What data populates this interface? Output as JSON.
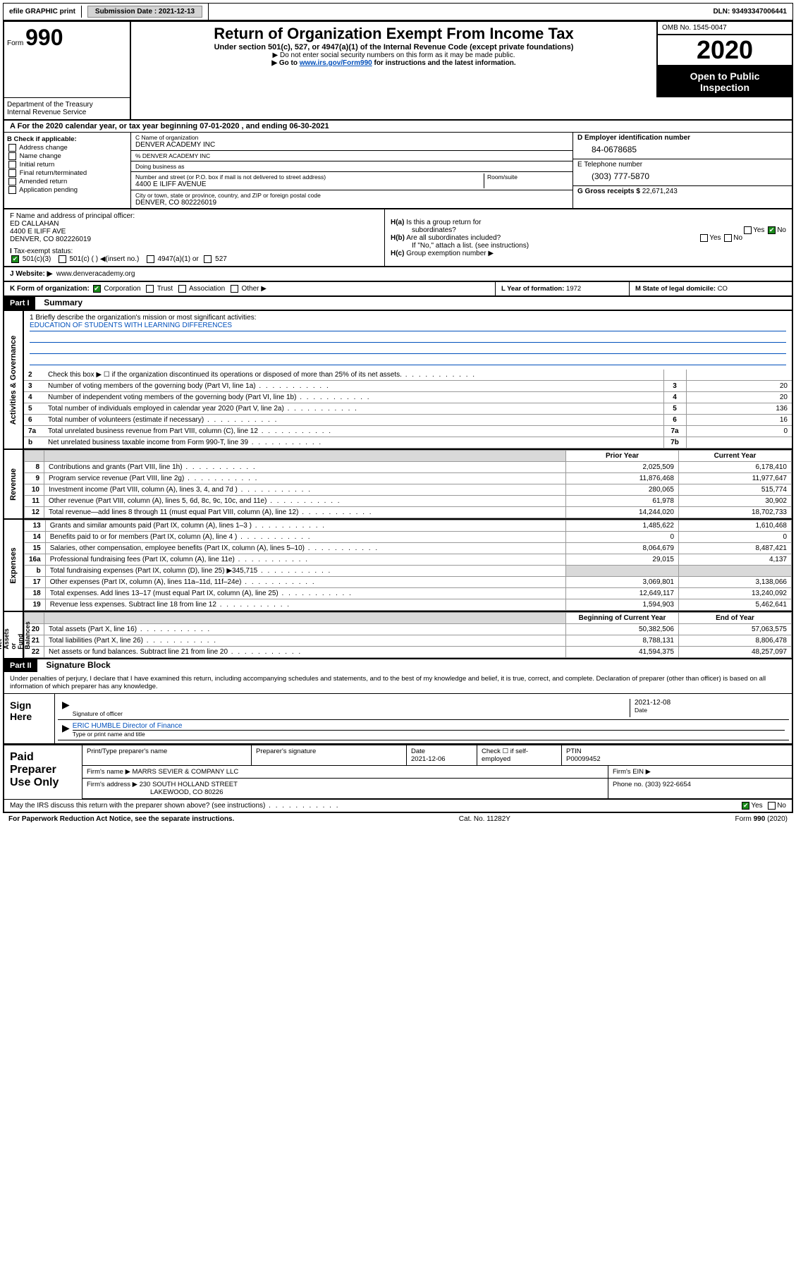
{
  "topbar": {
    "efile": "efile GRAPHIC print",
    "submission_label": "Submission Date : ",
    "submission_date": "2021-12-13",
    "dln_label": "DLN: ",
    "dln": "93493347006441"
  },
  "header": {
    "form_prefix": "Form",
    "form_number": "990",
    "title": "Return of Organization Exempt From Income Tax",
    "subtitle": "Under section 501(c), 527, or 4947(a)(1) of the Internal Revenue Code (except private foundations)",
    "instr1": "Do not enter social security numbers on this form as it may be made public.",
    "instr2_a": "Go to ",
    "instr2_link": "www.irs.gov/Form990",
    "instr2_b": " for instructions and the latest information.",
    "omb": "OMB No. 1545-0047",
    "year": "2020",
    "open_public_a": "Open to Public",
    "open_public_b": "Inspection",
    "dept": "Department of the Treasury\nInternal Revenue Service"
  },
  "line_a": "For the 2020 calendar year, or tax year beginning 07-01-2020   , and ending 06-30-2021",
  "check_b": {
    "label": "B Check if applicable:",
    "opts": [
      "Address change",
      "Name change",
      "Initial return",
      "Final return/terminated",
      "Amended return",
      "Application pending"
    ]
  },
  "org": {
    "c_label": "C Name of organization",
    "name": "DENVER ACADEMY INC",
    "pct": "% DENVER ACADEMY INC",
    "dba_label": "Doing business as",
    "addr_label": "Number and street (or P.O. box if mail is not delivered to street address)",
    "room_label": "Room/suite",
    "addr": "4400 E ILIFF AVENUE",
    "city_label": "City or town, state or province, country, and ZIP or foreign postal code",
    "city": "DENVER, CO  802226019"
  },
  "right_col": {
    "d_label": "D Employer identification number",
    "ein": "84-0678685",
    "e_label": "E Telephone number",
    "phone": "(303) 777-5870",
    "g_label": "G Gross receipts $ ",
    "gross": "22,671,243"
  },
  "officer": {
    "f_label": "F Name and address of principal officer:",
    "name": "ED CALLAHAN",
    "addr1": "4400 E ILIFF AVE",
    "addr2": "DENVER, CO  802226019"
  },
  "h_section": {
    "ha": "Is this a group return for",
    "ha2": "subordinates?",
    "hb": "Are all subordinates included?",
    "hb2": "If \"No,\" attach a list. (see instructions)",
    "hc": "Group exemption number ▶"
  },
  "tax_status": {
    "label": "Tax-exempt status:",
    "opts": [
      "501(c)(3)",
      "501(c) (  ) ◀(insert no.)",
      "4947(a)(1) or",
      "527"
    ]
  },
  "website": {
    "label": "J   Website: ▶",
    "url": "www.denveracademy.org"
  },
  "k_org": {
    "label": "K Form of organization:",
    "opts": [
      "Corporation",
      "Trust",
      "Association",
      "Other ▶"
    ]
  },
  "l": {
    "label": "L Year of formation: ",
    "val": "1972"
  },
  "m": {
    "label": "M State of legal domicile: ",
    "val": "CO"
  },
  "part1": {
    "header": "Part I",
    "title": "Summary"
  },
  "mission": {
    "q": "1  Briefly describe the organization's mission or most significant activities:",
    "text": "EDUCATION OF STUDENTS WITH LEARNING DIFFERENCES"
  },
  "governance_rows": [
    {
      "n": "2",
      "d": "Check this box ▶ ☐  if the organization discontinued its operations or disposed of more than 25% of its net assets.",
      "num": "",
      "v": ""
    },
    {
      "n": "3",
      "d": "Number of voting members of the governing body (Part VI, line 1a)",
      "num": "3",
      "v": "20"
    },
    {
      "n": "4",
      "d": "Number of independent voting members of the governing body (Part VI, line 1b)",
      "num": "4",
      "v": "20"
    },
    {
      "n": "5",
      "d": "Total number of individuals employed in calendar year 2020 (Part V, line 2a)",
      "num": "5",
      "v": "136"
    },
    {
      "n": "6",
      "d": "Total number of volunteers (estimate if necessary)",
      "num": "6",
      "v": "16"
    },
    {
      "n": "7a",
      "d": "Total unrelated business revenue from Part VIII, column (C), line 12",
      "num": "7a",
      "v": "0"
    },
    {
      "n": "b",
      "d": "Net unrelated business taxable income from Form 990-T, line 39",
      "num": "7b",
      "v": ""
    }
  ],
  "rev_header": {
    "c1": "Prior Year",
    "c2": "Current Year"
  },
  "revenue": [
    {
      "n": "8",
      "d": "Contributions and grants (Part VIII, line 1h)",
      "v1": "2,025,509",
      "v2": "6,178,410"
    },
    {
      "n": "9",
      "d": "Program service revenue (Part VIII, line 2g)",
      "v1": "11,876,468",
      "v2": "11,977,647"
    },
    {
      "n": "10",
      "d": "Investment income (Part VIII, column (A), lines 3, 4, and 7d )",
      "v1": "280,065",
      "v2": "515,774"
    },
    {
      "n": "11",
      "d": "Other revenue (Part VIII, column (A), lines 5, 6d, 8c, 9c, 10c, and 11e)",
      "v1": "61,978",
      "v2": "30,902"
    },
    {
      "n": "12",
      "d": "Total revenue—add lines 8 through 11 (must equal Part VIII, column (A), line 12)",
      "v1": "14,244,020",
      "v2": "18,702,733"
    }
  ],
  "expenses": [
    {
      "n": "13",
      "d": "Grants and similar amounts paid (Part IX, column (A), lines 1–3 )",
      "v1": "1,485,622",
      "v2": "1,610,468"
    },
    {
      "n": "14",
      "d": "Benefits paid to or for members (Part IX, column (A), line 4 )",
      "v1": "0",
      "v2": "0"
    },
    {
      "n": "15",
      "d": "Salaries, other compensation, employee benefits (Part IX, column (A), lines 5–10)",
      "v1": "8,064,679",
      "v2": "8,487,421"
    },
    {
      "n": "16a",
      "d": "Professional fundraising fees (Part IX, column (A), line 11e)",
      "v1": "29,015",
      "v2": "4,137"
    },
    {
      "n": "b",
      "d": "Total fundraising expenses (Part IX, column (D), line 25) ▶345,715",
      "v1": "",
      "v2": "",
      "shade": true
    },
    {
      "n": "17",
      "d": "Other expenses (Part IX, column (A), lines 11a–11d, 11f–24e)",
      "v1": "3,069,801",
      "v2": "3,138,066"
    },
    {
      "n": "18",
      "d": "Total expenses. Add lines 13–17 (must equal Part IX, column (A), line 25)",
      "v1": "12,649,117",
      "v2": "13,240,092"
    },
    {
      "n": "19",
      "d": "Revenue less expenses. Subtract line 18 from line 12",
      "v1": "1,594,903",
      "v2": "5,462,641"
    }
  ],
  "net_header": {
    "c1": "Beginning of Current Year",
    "c2": "End of Year"
  },
  "net": [
    {
      "n": "20",
      "d": "Total assets (Part X, line 16)",
      "v1": "50,382,506",
      "v2": "57,063,575"
    },
    {
      "n": "21",
      "d": "Total liabilities (Part X, line 26)",
      "v1": "8,788,131",
      "v2": "8,806,478"
    },
    {
      "n": "22",
      "d": "Net assets or fund balances. Subtract line 21 from line 20",
      "v1": "41,594,375",
      "v2": "48,257,097"
    }
  ],
  "side_labels": {
    "gov": "Activities & Governance",
    "rev": "Revenue",
    "exp": "Expenses",
    "net": "Net Assets or\nFund Balances"
  },
  "part2": {
    "header": "Part II",
    "title": "Signature Block"
  },
  "sig": {
    "perjury": "Under penalties of perjury, I declare that I have examined this return, including accompanying schedules and statements, and to the best of my knowledge and belief, it is true, correct, and complete. Declaration of preparer (other than officer) is based on all information of which preparer has any knowledge.",
    "sign_here": "Sign Here",
    "sig_of_officer": "Signature of officer",
    "date": "2021-12-08",
    "date_label": "Date",
    "officer_name": "ERIC HUMBLE  Director of Finance",
    "type_label": "Type or print name and title"
  },
  "prep": {
    "label": "Paid Preparer Use Only",
    "h_name": "Print/Type preparer's name",
    "h_sig": "Preparer's signature",
    "h_date_label": "Date",
    "h_date": "2021-12-06",
    "h_check": "Check ☐ if self-employed",
    "h_ptin_label": "PTIN",
    "h_ptin": "P00099452",
    "firm_name_label": "Firm's name    ▶ ",
    "firm_name": "MARRS SEVIER & COMPANY LLC",
    "firm_ein_label": "Firm's EIN ▶",
    "firm_addr_label": "Firm's address ▶ ",
    "firm_addr1": "230 SOUTH HOLLAND STREET",
    "firm_addr2": "LAKEWOOD, CO  80226",
    "phone_label": "Phone no. ",
    "phone": "(303) 922-6654"
  },
  "irs_discuss": "May the IRS discuss this return with the preparer shown above? (see instructions)",
  "footer": {
    "pra": "For Paperwork Reduction Act Notice, see the separate instructions.",
    "cat": "Cat. No. 11282Y",
    "form": "Form 990 (2020)"
  },
  "yes": "Yes",
  "no": "No",
  "colors": {
    "link": "#004fbb",
    "black": "#000000",
    "shade": "#d9d9d9",
    "check_green": "#1a8a1a",
    "btn_gray": "#d4d4d4"
  }
}
